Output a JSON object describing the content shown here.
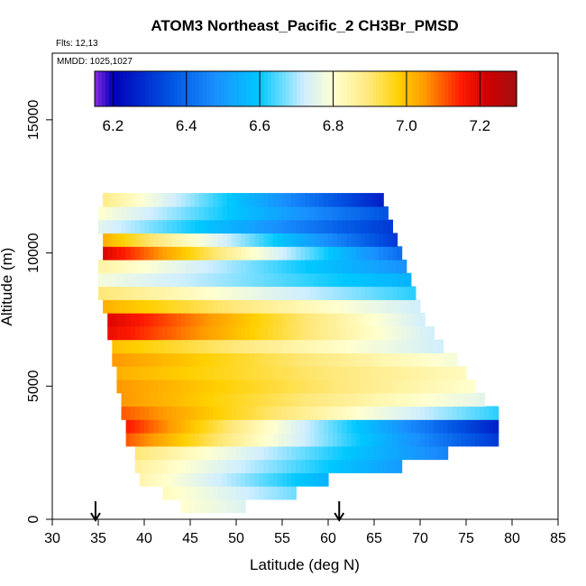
{
  "chart_data": {
    "type": "heatmap",
    "title": "ATOM3 Northeast_Pacific_2 CH3Br_PMSD",
    "flights_label": "Flts: 12,13",
    "dates_label": "MMDD: 1025,1027",
    "xlabel": "Latitude (deg N)",
    "ylabel": "Altitude (m)",
    "xlim": [
      30,
      85
    ],
    "ylim": [
      0,
      17500
    ],
    "xticks": [
      "30",
      "35",
      "40",
      "45",
      "50",
      "55",
      "60",
      "65",
      "70",
      "75",
      "80",
      "85"
    ],
    "yticks": [
      "0",
      "5000",
      "10000",
      "15000"
    ],
    "colorbar": {
      "range": [
        6.15,
        7.3
      ],
      "ticks": [
        "6.2",
        "6.4",
        "6.6",
        "6.8",
        "7.0",
        "7.2"
      ],
      "stops": [
        [
          6.15,
          "#8a2be2"
        ],
        [
          6.2,
          "#0000b8"
        ],
        [
          6.35,
          "#0050e0"
        ],
        [
          6.48,
          "#1a90ff"
        ],
        [
          6.6,
          "#00c8ff"
        ],
        [
          6.72,
          "#cfeeff"
        ],
        [
          6.8,
          "#ffffd0"
        ],
        [
          6.9,
          "#ffe87a"
        ],
        [
          6.98,
          "#ffd000"
        ],
        [
          7.05,
          "#ff9a00"
        ],
        [
          7.15,
          "#ff1a00"
        ],
        [
          7.22,
          "#d00000"
        ],
        [
          7.3,
          "#a01010"
        ]
      ]
    },
    "arrows_lat": [
      34.7,
      61.2
    ],
    "layers": [
      {
        "z": 500,
        "lat0": 44,
        "lat1": 51,
        "v0": 6.8,
        "v1": 6.74
      },
      {
        "z": 1000,
        "lat0": 42,
        "lat1": 56.5,
        "v0": 6.82,
        "v1": 6.66
      },
      {
        "z": 1500,
        "lat0": 39.5,
        "lat1": 60,
        "v0": 6.84,
        "v1": 6.55
      },
      {
        "z": 2000,
        "lat0": 39,
        "lat1": 68,
        "v0": 6.86,
        "v1": 6.5
      },
      {
        "z": 2500,
        "lat0": 39,
        "lat1": 73,
        "v0": 6.9,
        "v1": 6.45
      },
      {
        "z": 3000,
        "lat0": 38,
        "lat1": 78.5,
        "v0": 7.1,
        "v1": 6.3
      },
      {
        "z": 3500,
        "lat0": 38,
        "lat1": 78.5,
        "v0": 7.15,
        "v1": 6.25
      },
      {
        "z": 4000,
        "lat0": 37.5,
        "lat1": 78.5,
        "v0": 7.1,
        "v1": 6.62
      },
      {
        "z": 4500,
        "lat0": 37.5,
        "lat1": 77,
        "v0": 7.05,
        "v1": 6.75
      },
      {
        "z": 5000,
        "lat0": 37,
        "lat1": 76,
        "v0": 7.05,
        "v1": 6.8
      },
      {
        "z": 5500,
        "lat0": 37,
        "lat1": 75,
        "v0": 7.02,
        "v1": 6.82
      },
      {
        "z": 6000,
        "lat0": 36.5,
        "lat1": 74,
        "v0": 7.05,
        "v1": 6.78
      },
      {
        "z": 6500,
        "lat0": 36.5,
        "lat1": 72.5,
        "v0": 7.0,
        "v1": 6.72
      },
      {
        "z": 7000,
        "lat0": 36,
        "lat1": 71.5,
        "v0": 7.18,
        "v1": 6.72
      },
      {
        "z": 7500,
        "lat0": 36,
        "lat1": 70.5,
        "v0": 7.2,
        "v1": 6.72
      },
      {
        "z": 8000,
        "lat0": 35.5,
        "lat1": 70,
        "v0": 7.02,
        "v1": 6.72
      },
      {
        "z": 8500,
        "lat0": 35,
        "lat1": 69.5,
        "v0": 6.9,
        "v1": 6.62
      },
      {
        "z": 9000,
        "lat0": 35,
        "lat1": 69,
        "v0": 6.78,
        "v1": 6.55
      },
      {
        "z": 9500,
        "lat0": 35,
        "lat1": 68.5,
        "v0": 6.85,
        "v1": 6.48
      },
      {
        "z": 10000,
        "lat0": 35.5,
        "lat1": 68,
        "v0": 7.2,
        "v1": 6.4
      },
      {
        "z": 10500,
        "lat0": 35.5,
        "lat1": 67.5,
        "v0": 7.02,
        "v1": 6.3
      },
      {
        "z": 11000,
        "lat0": 35,
        "lat1": 67,
        "v0": 6.75,
        "v1": 6.3
      },
      {
        "z": 11500,
        "lat0": 35,
        "lat1": 66.5,
        "v0": 6.8,
        "v1": 6.35
      },
      {
        "z": 12000,
        "lat0": 35.5,
        "lat1": 66,
        "v0": 6.88,
        "v1": 6.25
      }
    ]
  }
}
